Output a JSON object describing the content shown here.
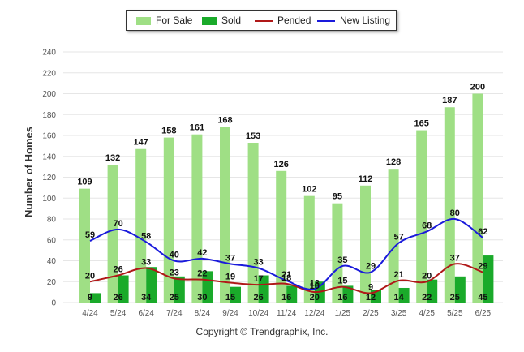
{
  "legend": {
    "for_sale": "For Sale",
    "sold": "Sold",
    "pended": "Pended",
    "new_listing": "New Listing"
  },
  "copyright": "Copyright © Trendgraphix, Inc.",
  "colors": {
    "for_sale": "#9fdf85",
    "sold": "#1aaa2a",
    "pended": "#b01818",
    "new_listing": "#1a1adb",
    "grid": "#e6e6e6",
    "axis_text": "#555555"
  },
  "chart_data": {
    "type": "bar",
    "ylabel": "Number of Homes",
    "xlabel": "",
    "ylim": [
      0,
      240
    ],
    "yticks": [
      0,
      20,
      40,
      60,
      80,
      100,
      120,
      140,
      160,
      180,
      200,
      220,
      240
    ],
    "grid": true,
    "legend_position": "top",
    "categories": [
      "4/24",
      "5/24",
      "6/24",
      "7/24",
      "8/24",
      "9/24",
      "10/24",
      "11/24",
      "12/24",
      "1/25",
      "2/25",
      "3/25",
      "4/25",
      "5/25",
      "6/25"
    ],
    "series": [
      {
        "name": "For Sale",
        "kind": "bar",
        "values": [
          109,
          132,
          147,
          158,
          161,
          168,
          153,
          126,
          102,
          95,
          112,
          128,
          165,
          187,
          200
        ]
      },
      {
        "name": "Sold",
        "kind": "bar",
        "values": [
          9,
          26,
          34,
          25,
          30,
          15,
          26,
          16,
          20,
          16,
          12,
          14,
          22,
          25,
          45
        ]
      },
      {
        "name": "Pended",
        "kind": "line",
        "values": [
          20,
          26,
          33,
          23,
          22,
          19,
          17,
          18,
          10,
          15,
          9,
          21,
          20,
          37,
          29
        ]
      },
      {
        "name": "New Listing",
        "kind": "line",
        "values": [
          59,
          70,
          58,
          40,
          42,
          37,
          33,
          21,
          13,
          35,
          29,
          57,
          68,
          80,
          62
        ]
      }
    ]
  }
}
